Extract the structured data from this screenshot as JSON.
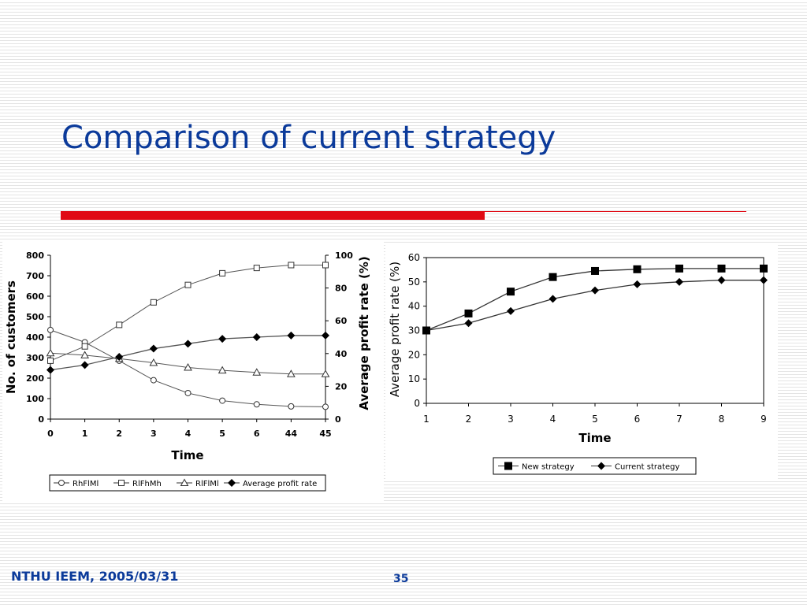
{
  "slide": {
    "title": "Comparison of current strategy",
    "footer_left": "NTHU IEEM, 2005/03/31",
    "page_number": "35",
    "title_rule_color": "#e00a14",
    "text_color": "#0b3a9a"
  },
  "chart_data": [
    {
      "type": "line",
      "xlabel": "Time",
      "ylabel": "No. of customers",
      "y2label": "Average profit rate (%)",
      "categories": [
        "0",
        "1",
        "2",
        "3",
        "4",
        "5",
        "6",
        "44",
        "45"
      ],
      "ylim": [
        0,
        800
      ],
      "yticks": [
        0,
        100,
        200,
        300,
        400,
        500,
        600,
        700,
        800
      ],
      "y2lim": [
        0,
        100
      ],
      "y2ticks": [
        0,
        20,
        40,
        60,
        80,
        100
      ],
      "grid": false,
      "legend": "bottom",
      "series": [
        {
          "name": "RhFlMl",
          "axis": "left",
          "marker": "circle-open",
          "values": [
            435,
            375,
            285,
            190,
            127,
            90,
            72,
            62,
            60
          ]
        },
        {
          "name": "RlFhMh",
          "axis": "left",
          "marker": "square-open",
          "values": [
            285,
            355,
            460,
            570,
            655,
            712,
            738,
            752,
            752
          ]
        },
        {
          "name": "RlFlMl",
          "axis": "left",
          "marker": "triangle-open",
          "values": [
            322,
            312,
            295,
            275,
            252,
            238,
            228,
            220,
            220
          ]
        },
        {
          "name": "Average profit rate",
          "axis": "right",
          "marker": "diamond-filled",
          "values": [
            30,
            33,
            38,
            43,
            46,
            49,
            50,
            51,
            51
          ]
        }
      ]
    },
    {
      "type": "line",
      "xlabel": "Time",
      "ylabel": "Average profit rate (%)",
      "categories": [
        "1",
        "2",
        "3",
        "4",
        "5",
        "6",
        "7",
        "8",
        "9"
      ],
      "ylim": [
        0,
        60
      ],
      "yticks": [
        0,
        10,
        20,
        30,
        40,
        50,
        60
      ],
      "grid": false,
      "legend": "bottom",
      "series": [
        {
          "name": "New strategy",
          "marker": "square-filled",
          "values": [
            30,
            37,
            46,
            52,
            54.5,
            55.2,
            55.5,
            55.5,
            55.5
          ]
        },
        {
          "name": "Current strategy",
          "marker": "diamond-filled",
          "values": [
            30,
            33,
            38,
            43,
            46.5,
            49,
            50,
            50.7,
            50.7
          ]
        }
      ]
    }
  ]
}
